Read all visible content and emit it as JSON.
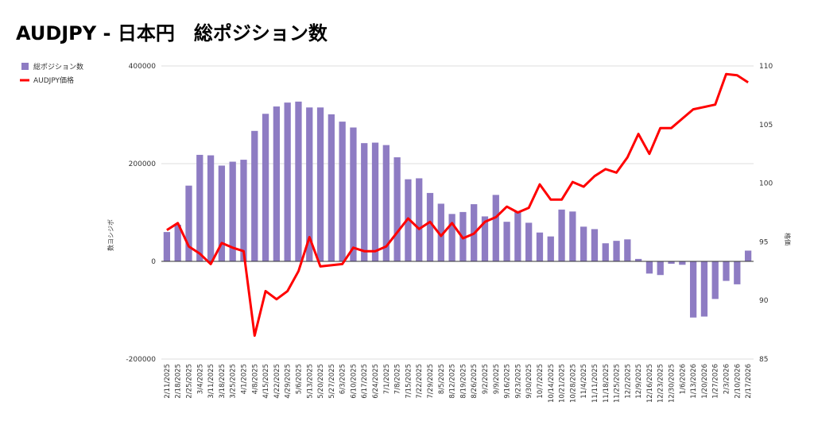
{
  "chart_data": {
    "type": "bar",
    "title": "AUDJPY - 日本円　総ポジション数",
    "ylabel_left": "数ヨシジボ",
    "ylabel_right": "格価",
    "ylim_left": [
      -200000,
      400000
    ],
    "ylim_right": [
      85,
      110
    ],
    "yticks_left": [
      "400000",
      "200000",
      "0",
      "-200000"
    ],
    "yticks_right": [
      "110",
      "105",
      "100",
      "95",
      "90",
      "85"
    ],
    "grid": true,
    "legend_position": "top-left",
    "categories": [
      "2/11/2025",
      "2/18/2025",
      "2/25/2025",
      "3/4/2025",
      "3/11/2025",
      "3/18/2025",
      "3/25/2025",
      "4/1/2025",
      "4/8/2025",
      "4/15/2025",
      "4/22/2025",
      "4/29/2025",
      "5/6/2025",
      "5/13/2025",
      "5/20/2025",
      "5/27/2025",
      "6/3/2025",
      "6/10/2025",
      "6/17/2025",
      "6/24/2025",
      "7/1/2025",
      "7/8/2025",
      "7/15/2025",
      "7/22/2025",
      "7/29/2025",
      "8/5/2025",
      "8/12/2025",
      "8/19/2025",
      "8/26/2025",
      "9/2/2025",
      "9/9/2025",
      "9/16/2025",
      "9/23/2025",
      "9/30/2025",
      "10/7/2025",
      "10/14/2025",
      "10/21/2025",
      "10/28/2025",
      "11/4/2025",
      "11/11/2025",
      "11/18/2025",
      "11/25/2025",
      "12/2/2025",
      "12/9/2025",
      "12/16/2025",
      "12/23/2025",
      "12/30/2025",
      "1/6/2026",
      "1/13/2026",
      "1/20/2026",
      "1/27/2026",
      "2/3/2026",
      "2/10/2026",
      "2/17/2026"
    ],
    "series": [
      {
        "name": "総ポジション数",
        "type": "bar",
        "axis": "left",
        "color": "#8e7cc3",
        "values": [
          60000,
          75000,
          155000,
          218000,
          217000,
          196000,
          204000,
          208000,
          267000,
          302000,
          317000,
          325000,
          327000,
          315000,
          315000,
          301000,
          286000,
          274000,
          242000,
          243000,
          238000,
          213000,
          168000,
          170000,
          140000,
          118000,
          97000,
          101000,
          117000,
          92000,
          136000,
          81000,
          101000,
          79000,
          59000,
          51000,
          106000,
          102000,
          71000,
          66000,
          37000,
          42000,
          45000,
          5000,
          -25000,
          -28000,
          -5000,
          -7000,
          -115000,
          -113000,
          -77000,
          -40000,
          -47000,
          22000
        ]
      },
      {
        "name": "AUDJPY価格",
        "type": "line",
        "axis": "right",
        "color": "#ff0000",
        "values": [
          96.0,
          96.6,
          94.6,
          94.0,
          93.1,
          94.9,
          94.5,
          94.2,
          87.0,
          90.8,
          90.1,
          90.8,
          92.5,
          95.4,
          92.9,
          93.0,
          93.1,
          94.5,
          94.2,
          94.2,
          94.6,
          95.8,
          97.0,
          96.1,
          96.7,
          95.5,
          96.6,
          95.3,
          95.7,
          96.7,
          97.1,
          98.0,
          97.5,
          97.9,
          99.9,
          98.6,
          98.6,
          100.1,
          99.7,
          100.6,
          101.2,
          100.9,
          102.2,
          104.2,
          102.5,
          104.7,
          104.7,
          105.5,
          106.3,
          106.5,
          106.7,
          109.3,
          109.2,
          108.6
        ]
      }
    ]
  }
}
